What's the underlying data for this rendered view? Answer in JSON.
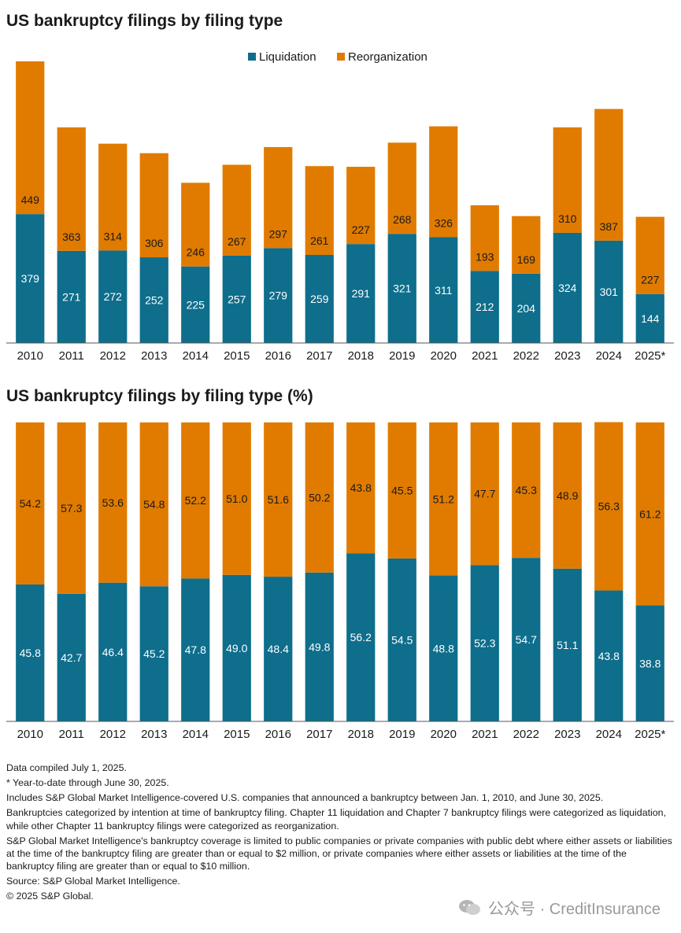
{
  "colors": {
    "liquidation": "#0E6E8C",
    "reorganization": "#E07B00",
    "axis": "#555555"
  },
  "chart_data": [
    {
      "type": "bar",
      "stacked": true,
      "title": "US bankruptcy filings by filing type",
      "categories": [
        "2010",
        "2011",
        "2012",
        "2013",
        "2014",
        "2015",
        "2016",
        "2017",
        "2018",
        "2019",
        "2020",
        "2021",
        "2022",
        "2023",
        "2024",
        "2025*"
      ],
      "series": [
        {
          "name": "Liquidation",
          "values": [
            379,
            271,
            272,
            252,
            225,
            257,
            279,
            259,
            291,
            321,
            311,
            212,
            204,
            324,
            301,
            144
          ]
        },
        {
          "name": "Reorganization",
          "values": [
            449,
            363,
            314,
            306,
            246,
            267,
            297,
            261,
            227,
            268,
            326,
            193,
            169,
            310,
            387,
            227
          ]
        }
      ],
      "ylim": [
        0,
        828
      ],
      "legend": "top-center",
      "grid": false
    },
    {
      "type": "bar",
      "stacked": true,
      "title": "US bankruptcy filings by filing type (%)",
      "categories": [
        "2010",
        "2011",
        "2012",
        "2013",
        "2014",
        "2015",
        "2016",
        "2017",
        "2018",
        "2019",
        "2020",
        "2021",
        "2022",
        "2023",
        "2024",
        "2025*"
      ],
      "series": [
        {
          "name": "Liquidation",
          "values": [
            45.8,
            42.7,
            46.4,
            45.2,
            47.8,
            49.0,
            48.4,
            49.8,
            56.2,
            54.5,
            48.8,
            52.3,
            54.7,
            51.1,
            43.8,
            38.8
          ]
        },
        {
          "name": "Reorganization",
          "values": [
            54.2,
            57.3,
            53.6,
            54.8,
            52.2,
            51.0,
            51.6,
            50.2,
            43.8,
            45.5,
            51.2,
            47.7,
            45.3,
            48.9,
            56.3,
            61.2
          ]
        }
      ],
      "ylim": [
        0,
        100
      ],
      "grid": false
    }
  ],
  "notes": [
    "Data compiled July 1, 2025.",
    "* Year-to-date through June 30, 2025.",
    "Includes S&P Global Market Intelligence-covered U.S. companies that announced a bankruptcy between Jan. 1, 2010, and June 30, 2025.",
    "Bankruptcies categorized by intention at time of bankruptcy filing. Chapter 11 liquidation and Chapter 7 bankruptcy filings were categorized as liquidation, while other Chapter 11 bankruptcy filings were categorized as reorganization.",
    "S&P Global Market Intelligence's bankruptcy coverage is limited to public companies or private companies with public debt where either assets or liabilities at the time of the bankruptcy filing are greater than or equal to $2 million, or private companies where either assets or liabilities at the time of the bankruptcy filing are greater than or equal to $10 million.",
    "Source: S&P Global Market Intelligence.",
    "© 2025 S&P Global."
  ],
  "watermark": {
    "text": "公众号 · CreditInsurance",
    "icon": "wechat-icon"
  }
}
